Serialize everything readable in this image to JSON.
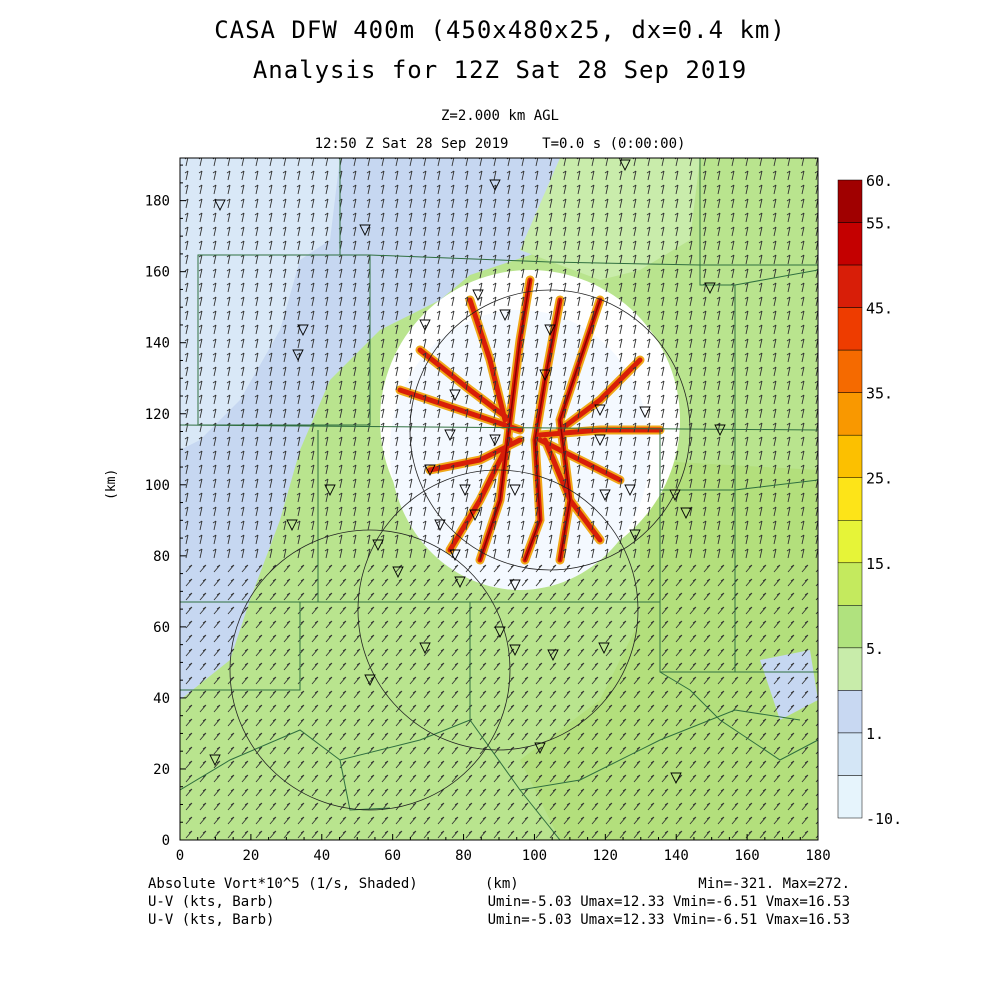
{
  "header": {
    "title_line1": "CASA DFW 400m (450x480x25, dx=0.4 km)",
    "title_line2": "Analysis for 12Z Sat 28 Sep 2019",
    "level": "Z=2.000 km AGL",
    "valid_time": "12:50 Z Sat 28 Sep 2019    T=0.0 s (0:00:00)"
  },
  "axes": {
    "y_label": "(km)",
    "x_label": "(km)",
    "x_ticks": [
      "0",
      "20",
      "40",
      "60",
      "80",
      "100",
      "120",
      "140",
      "160",
      "180"
    ],
    "y_ticks": [
      "0",
      "20",
      "40",
      "60",
      "80",
      "100",
      "120",
      "140",
      "160",
      "180"
    ],
    "x_range": [
      0,
      180
    ],
    "y_range": [
      0,
      192
    ]
  },
  "colorbar": {
    "labels": [
      "60.",
      "55.",
      "45.",
      "35.",
      "25.",
      "15.",
      "5.",
      "1.",
      "-10."
    ],
    "colors": [
      "#a00000",
      "#c40000",
      "#d81e08",
      "#ee3c00",
      "#f56a00",
      "#f99800",
      "#fcc000",
      "#fde418",
      "#e6f438",
      "#c4ea5e",
      "#b0e27e",
      "#c8ecaa",
      "#c8d8f2",
      "#d4e6f6",
      "#e6f4fc"
    ]
  },
  "footer": {
    "field_label": "Absolute Vort*10^5 (1/s, Shaded)",
    "x_unit": "(km)",
    "minmax": "Min=-321. Max=272.",
    "wind_label_1": "U-V (kts, Barb)",
    "wind_label_2": "U-V (kts, Barb)",
    "wind_stats_1": "Umin=-5.03 Umax=12.33 Vmin=-6.51 Vmax=16.53",
    "wind_stats_2": "Umin=-5.03 Umax=12.33 Vmin=-6.51 Vmax=16.53"
  }
}
